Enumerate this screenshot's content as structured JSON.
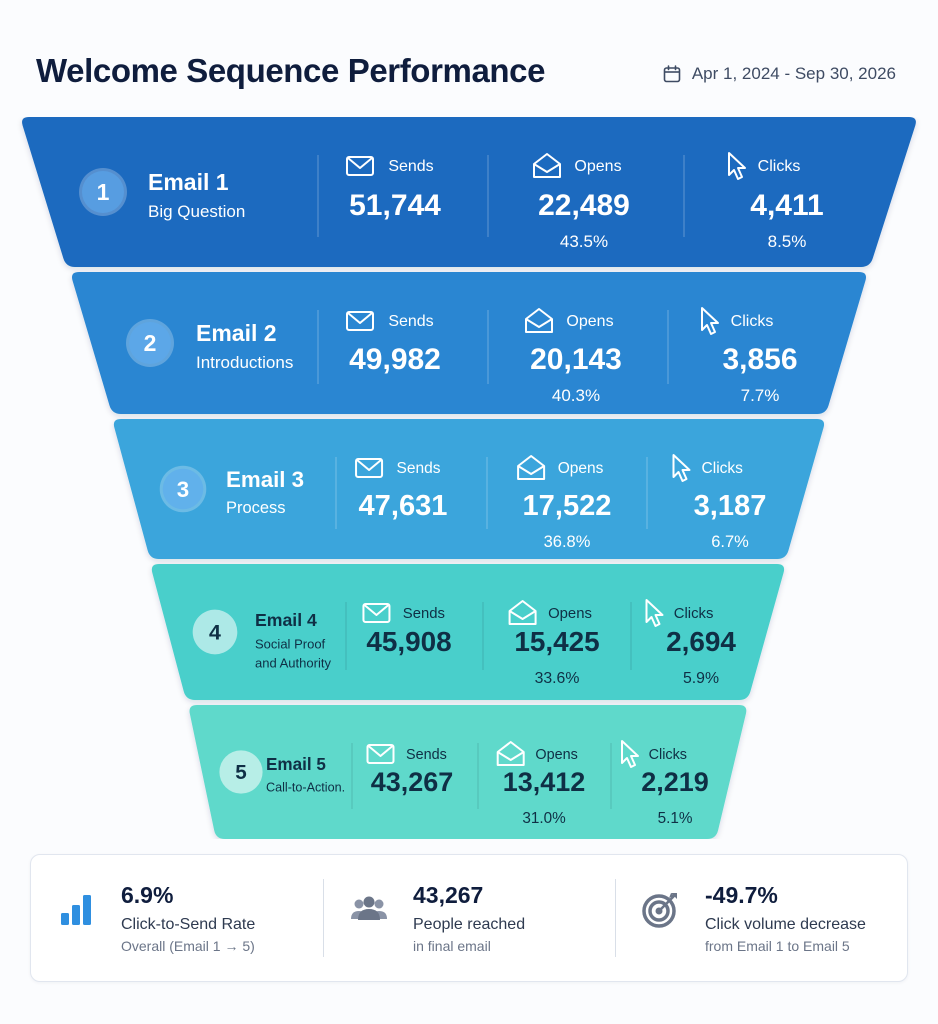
{
  "header": {
    "title": "Welcome Sequence Performance",
    "date_range": "Apr 1, 2024 - Sep 30, 2026"
  },
  "metric_labels": {
    "sends": "Sends",
    "opens": "Opens",
    "clicks": "Clicks"
  },
  "chart_data": {
    "type": "funnel",
    "stages": [
      {
        "index": "1",
        "name": "Email 1",
        "subtitle": [
          "Big Question"
        ],
        "sends": "51,744",
        "opens": "22,489",
        "open_rate": "43.5%",
        "clicks": "4,411",
        "click_rate": "8.5%",
        "color": "#1f6bbf"
      },
      {
        "index": "2",
        "name": "Email 2",
        "subtitle": [
          "Introductions"
        ],
        "sends": "49,982",
        "opens": "20,143",
        "open_rate": "40.3%",
        "clicks": "3,856",
        "click_rate": "7.7%",
        "color": "#2a86d2"
      },
      {
        "index": "3",
        "name": "Email 3",
        "subtitle": [
          "Process"
        ],
        "sends": "47,631",
        "opens": "17,522",
        "open_rate": "36.8%",
        "clicks": "3,187",
        "click_rate": "6.7%",
        "color": "#3aa5dc"
      },
      {
        "index": "4",
        "name": "Email 4",
        "subtitle": [
          "Social Proof",
          "and Authority"
        ],
        "sends": "45,908",
        "opens": "15,425",
        "open_rate": "33.6%",
        "clicks": "2,694",
        "click_rate": "5.9%",
        "color": "#49cfcb"
      },
      {
        "index": "5",
        "name": "Email 5",
        "subtitle": [
          "Call-to-Action."
        ],
        "sends": "43,267",
        "opens": "13,412",
        "open_rate": "31.0%",
        "clicks": "2,219",
        "click_rate": "5.1%",
        "color": "#5ed9cb"
      }
    ]
  },
  "summary": [
    {
      "icon": "bar-chart-icon",
      "value": "6.9%",
      "label": "Click-to-Send Rate",
      "sub": "Overall (Email 1 → 5)"
    },
    {
      "icon": "people-icon",
      "value": "43,267",
      "label": "People reached",
      "sub": "in final email"
    },
    {
      "icon": "target-icon",
      "value": "-49.7%",
      "label": "Click volume decrease",
      "sub": "from Email 1 to Email 5"
    }
  ],
  "colors": {
    "title": "#0f1d3d",
    "stage_1": "#1f6bbf",
    "stage_5": "#5ed9cb",
    "icon_blue": "#2f8fe0",
    "icon_gray": "#6b7588"
  }
}
